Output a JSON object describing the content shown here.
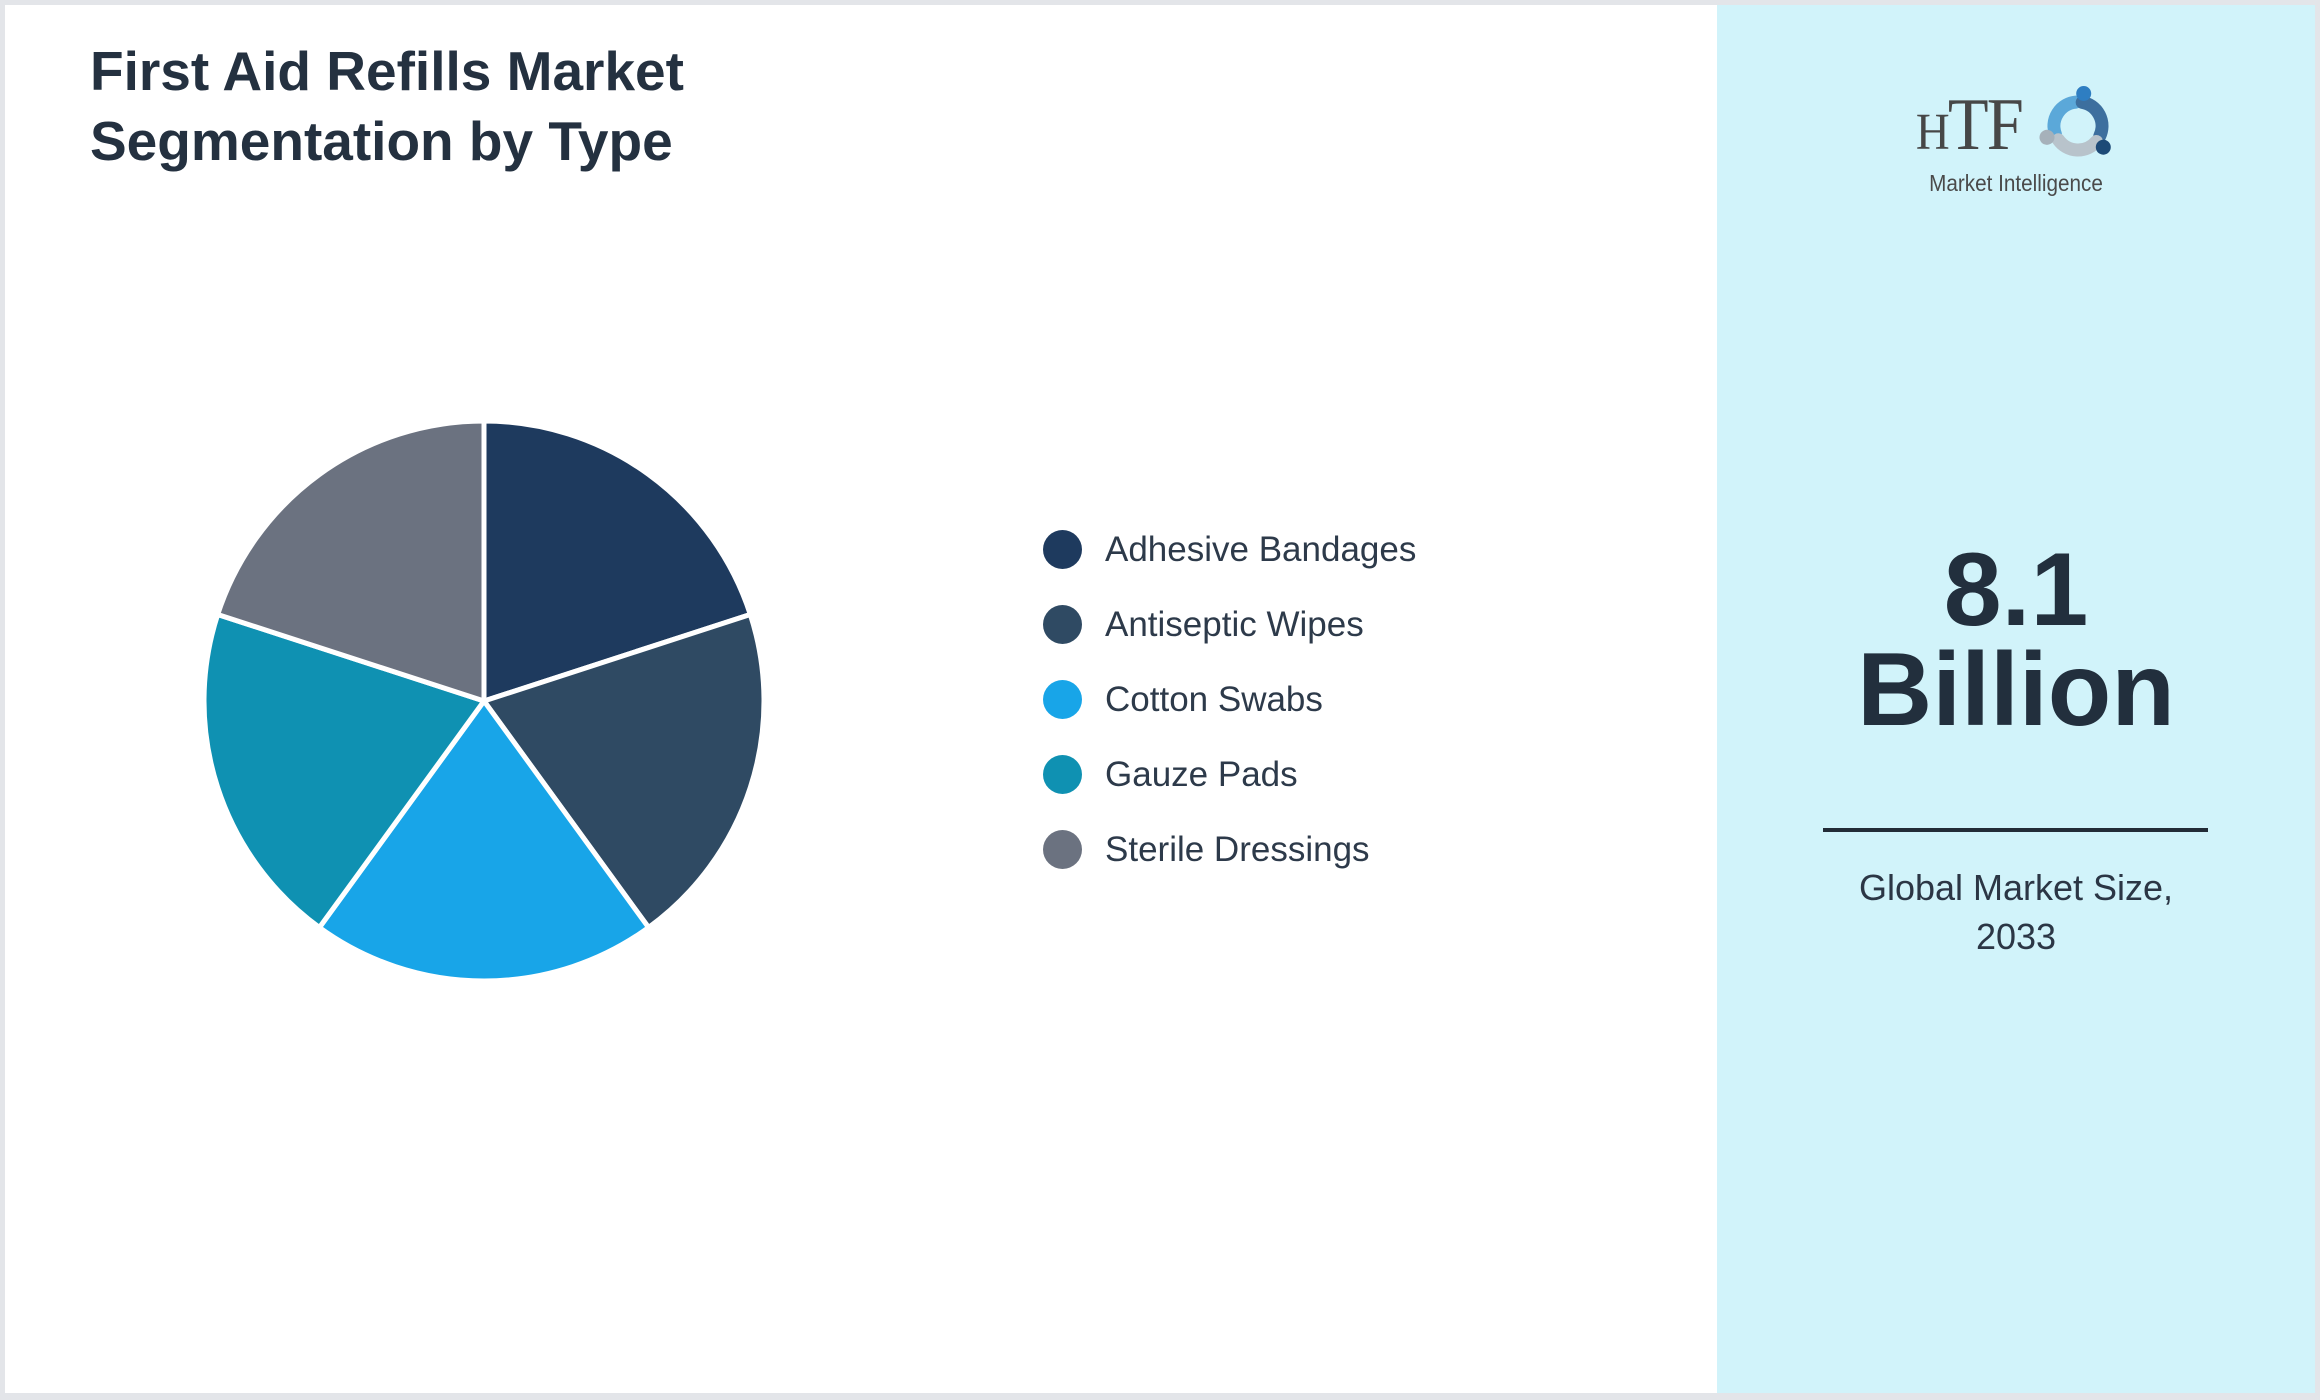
{
  "header": {
    "line1": "First Aid Refills Market",
    "line2": "Segmentation by Type"
  },
  "chart_data": {
    "type": "pie",
    "title": "First Aid Refills Market Segmentation by Type",
    "categories": [
      "Adhesive Bandages",
      "Antiseptic Wipes",
      "Cotton Swabs",
      "Gauze Pads",
      "Sterile Dressings"
    ],
    "values": [
      20,
      20,
      20,
      20,
      20
    ],
    "colors": [
      "#1e3a5e",
      "#2f4a63",
      "#18a5e8",
      "#0f91b2",
      "#6b7280"
    ],
    "start_angle_deg": 0,
    "direction": "clockwise",
    "legend_position": "right",
    "slice_border_color": "#ffffff"
  },
  "sidebar": {
    "logo": {
      "text_h": "H",
      "text_tf": "TF",
      "subtext": "Market Intelligence",
      "icon": "three-figures-swirl"
    },
    "value_line1": "8.1",
    "value_line2": "Billion",
    "caption_line1": "Global Market Size,",
    "caption_line2": "2033"
  },
  "palette": {
    "panel_background": "#d1f3fa",
    "frame_border": "#e3e5e9",
    "title_text": "#243140",
    "legend_text": "#2d3a4a",
    "number_text": "#222f3d",
    "divider": "#222b36",
    "logo_text": "#474747"
  }
}
